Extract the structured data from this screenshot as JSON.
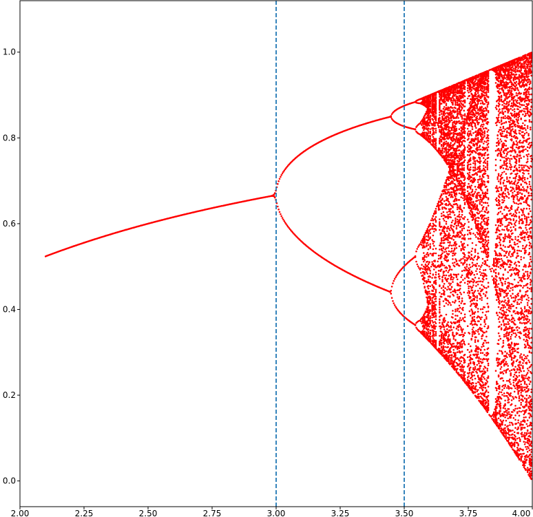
{
  "chart_data": {
    "type": "scatter",
    "title": "",
    "xlabel": "",
    "ylabel": "",
    "xlim": [
      2.0,
      4.0
    ],
    "ylim": [
      -0.06,
      1.12
    ],
    "grid": false,
    "x_ticks": [
      2.0,
      2.25,
      2.5,
      2.75,
      3.0,
      3.25,
      3.5,
      3.75,
      4.0
    ],
    "x_tick_labels": [
      "2.00",
      "2.25",
      "2.50",
      "2.75",
      "3.00",
      "3.25",
      "3.50",
      "3.75",
      "4.00"
    ],
    "y_ticks": [
      0.0,
      0.2,
      0.4,
      0.6,
      0.8,
      1.0
    ],
    "y_tick_labels": [
      "0.0",
      "0.2",
      "0.4",
      "0.6",
      "0.8",
      "1.0"
    ],
    "series": [
      {
        "marker_color": "#ff0000",
        "description_of_values": "logistic-map attractor points x_n for r in [2.1, 4.0]",
        "r_min": 2.1,
        "r_max": 4.0
      }
    ],
    "reference_lines": [
      {
        "orientation": "vertical",
        "x": 3.0,
        "style": "dashed",
        "color": "#1f77b4"
      },
      {
        "orientation": "vertical",
        "x": 3.5,
        "style": "dashed",
        "color": "#1f77b4"
      }
    ]
  }
}
